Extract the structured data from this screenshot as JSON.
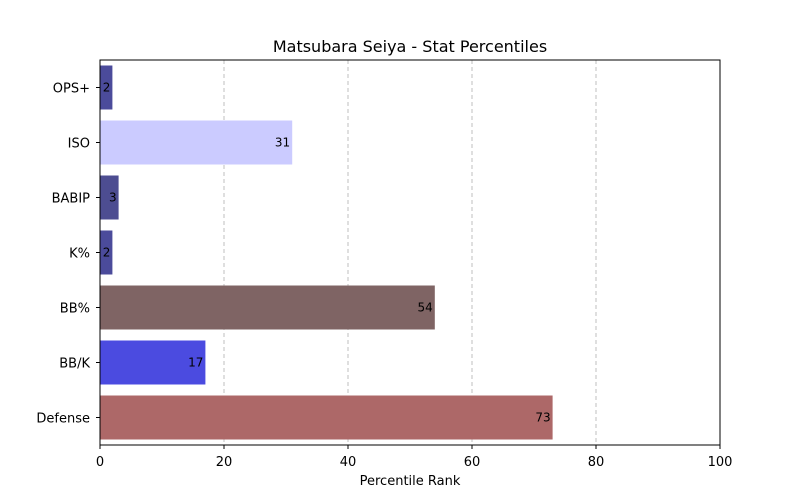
{
  "chart_data": {
    "type": "bar",
    "orientation": "horizontal",
    "title": "Matsubara Seiya - Stat Percentiles",
    "xlabel": "Percentile Rank",
    "ylabel": "",
    "xlim": [
      0,
      100
    ],
    "xticks": [
      0,
      20,
      40,
      60,
      80,
      100
    ],
    "grid": "x-dashed",
    "categories": [
      "OPS+",
      "ISO",
      "BABIP",
      "K%",
      "BB%",
      "BB/K",
      "Defense"
    ],
    "values": [
      2,
      31,
      3,
      2,
      54,
      17,
      73
    ],
    "colors": [
      "#4B4B9B",
      "#CBCBFF",
      "#4D4D91",
      "#4B4B9B",
      "#7F6464",
      "#4B4BE0",
      "#AD6868"
    ]
  }
}
